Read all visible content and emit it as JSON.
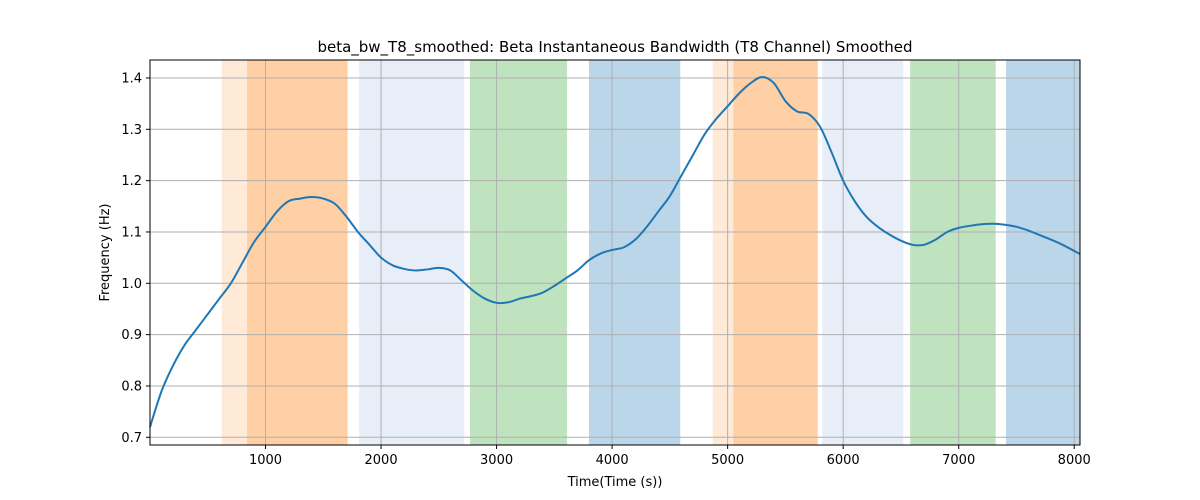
{
  "chart_data": {
    "type": "line",
    "title": "beta_bw_T8_smoothed: Beta Instantaneous Bandwidth (T8 Channel) Smoothed",
    "xlabel": "Time(Time (s))",
    "ylabel": "Frequency (Hz)",
    "xlim": [
      0,
      8050
    ],
    "ylim": [
      0.685,
      1.435
    ],
    "xticks": [
      "1000",
      "2000",
      "3000",
      "4000",
      "5000",
      "6000",
      "7000",
      "8000"
    ],
    "xtick_values": [
      1000,
      2000,
      3000,
      4000,
      5000,
      6000,
      7000,
      8000
    ],
    "yticks": [
      "0.7",
      "0.8",
      "0.9",
      "1.0",
      "1.1",
      "1.2",
      "1.3",
      "1.4"
    ],
    "ytick_values": [
      0.7,
      0.8,
      0.9,
      1.0,
      1.1,
      1.2,
      1.3,
      1.4
    ],
    "grid": true,
    "line_color": "#1f77b4",
    "bands": [
      {
        "x0": 620,
        "x1": 1710,
        "color": "#ff7f0e",
        "opacity": 0.16
      },
      {
        "x0": 840,
        "x1": 1710,
        "color": "#ff7f0e",
        "opacity": 0.25
      },
      {
        "x0": 1810,
        "x1": 2720,
        "color": "#aec7e8",
        "opacity": 0.3
      },
      {
        "x0": 2770,
        "x1": 3610,
        "color": "#2ca02c",
        "opacity": 0.3
      },
      {
        "x0": 3800,
        "x1": 4590,
        "color": "#1f77b4",
        "opacity": 0.3
      },
      {
        "x0": 4870,
        "x1": 5780,
        "color": "#ff7f0e",
        "opacity": 0.16
      },
      {
        "x0": 5050,
        "x1": 5780,
        "color": "#ff7f0e",
        "opacity": 0.25
      },
      {
        "x0": 5820,
        "x1": 6520,
        "color": "#aec7e8",
        "opacity": 0.3
      },
      {
        "x0": 6580,
        "x1": 7320,
        "color": "#2ca02c",
        "opacity": 0.3
      },
      {
        "x0": 7410,
        "x1": 8050,
        "color": "#1f77b4",
        "opacity": 0.3
      }
    ],
    "series": [
      {
        "x": [
          0,
          100,
          200,
          300,
          400,
          500,
          600,
          700,
          800,
          900,
          1000,
          1100,
          1200,
          1300,
          1400,
          1500,
          1600,
          1700,
          1800,
          1900,
          2000,
          2100,
          2200,
          2300,
          2400,
          2500,
          2600,
          2700,
          2800,
          2900,
          3000,
          3100,
          3200,
          3300,
          3400,
          3500,
          3600,
          3700,
          3800,
          3900,
          4000,
          4100,
          4200,
          4300,
          4400,
          4500,
          4600,
          4700,
          4800,
          4900,
          5000,
          5100,
          5200,
          5300,
          5400,
          5500,
          5600,
          5700,
          5800,
          5900,
          6000,
          6100,
          6200,
          6300,
          6400,
          6500,
          6600,
          6700,
          6800,
          6900,
          7000,
          7100,
          7200,
          7300,
          7400,
          7500,
          7600,
          7700,
          7800,
          7900,
          8050
        ],
        "y": [
          0.72,
          0.79,
          0.84,
          0.88,
          0.91,
          0.94,
          0.97,
          1.0,
          1.04,
          1.08,
          1.11,
          1.14,
          1.16,
          1.165,
          1.168,
          1.165,
          1.155,
          1.13,
          1.1,
          1.075,
          1.05,
          1.035,
          1.028,
          1.025,
          1.027,
          1.03,
          1.025,
          1.005,
          0.985,
          0.97,
          0.962,
          0.963,
          0.97,
          0.975,
          0.982,
          0.995,
          1.01,
          1.025,
          1.045,
          1.058,
          1.065,
          1.07,
          1.085,
          1.11,
          1.14,
          1.17,
          1.21,
          1.25,
          1.29,
          1.32,
          1.345,
          1.37,
          1.39,
          1.402,
          1.39,
          1.355,
          1.335,
          1.33,
          1.305,
          1.255,
          1.2,
          1.16,
          1.13,
          1.11,
          1.095,
          1.083,
          1.075,
          1.075,
          1.085,
          1.1,
          1.108,
          1.112,
          1.115,
          1.116,
          1.114,
          1.11,
          1.103,
          1.094,
          1.085,
          1.075,
          1.057
        ]
      }
    ]
  }
}
